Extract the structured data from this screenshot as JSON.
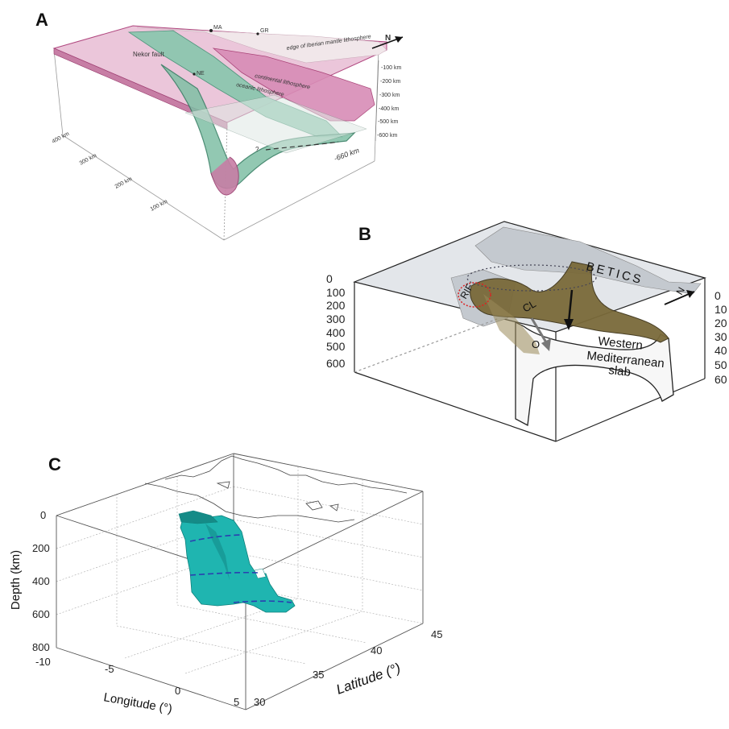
{
  "panel_a": {
    "label": "A",
    "place_ma": "MA",
    "place_gr": "GR",
    "place_ne": "NE",
    "north": "N",
    "edge_label": "edge of Iberian mantle lithosphere",
    "nekor_label": "Nekor fault",
    "continental_label": "continental lithosphere",
    "oceanic_label": "oceanic lithosphere",
    "question": "?",
    "depth_labels": [
      "-100 km",
      "-200 km",
      "-300 km",
      "-400 km",
      "-500 km",
      "-600 km"
    ],
    "depth_bottom": "-660 km",
    "distance_labels": [
      "400 km",
      "300 km",
      "200 km",
      "100 km"
    ]
  },
  "panel_b": {
    "label": "B",
    "betics": "BETICS",
    "north": "N",
    "rif": "RIF",
    "cl": "CL",
    "o": "O",
    "slab_line1": "Western",
    "slab_line2": "Mediterranean",
    "slab_line3": "slab",
    "depth_left": [
      "0",
      "100",
      "200",
      "300",
      "400",
      "500",
      "600"
    ],
    "depth_right": [
      "0",
      "10",
      "20",
      "30",
      "40",
      "50",
      "60"
    ]
  },
  "panel_c": {
    "label": "C",
    "depth_title": "Depth (km)",
    "depth_ticks": [
      "0",
      "200",
      "400",
      "600",
      "800"
    ],
    "longitude_title": "Longitude (°)",
    "longitude_ticks": [
      "-10",
      "-5",
      "0",
      "5"
    ],
    "latitude_title": "Latitude (°)",
    "latitude_ticks": [
      "30",
      "35",
      "40",
      "45"
    ]
  },
  "colors": {
    "pink": "#e6bfd6",
    "magenta": "#b0477f",
    "green": "#7fbfa5",
    "slab_brown": "#7a6a3a",
    "teal": "#1fb5b0",
    "block_grey": "#d8dbe0"
  }
}
